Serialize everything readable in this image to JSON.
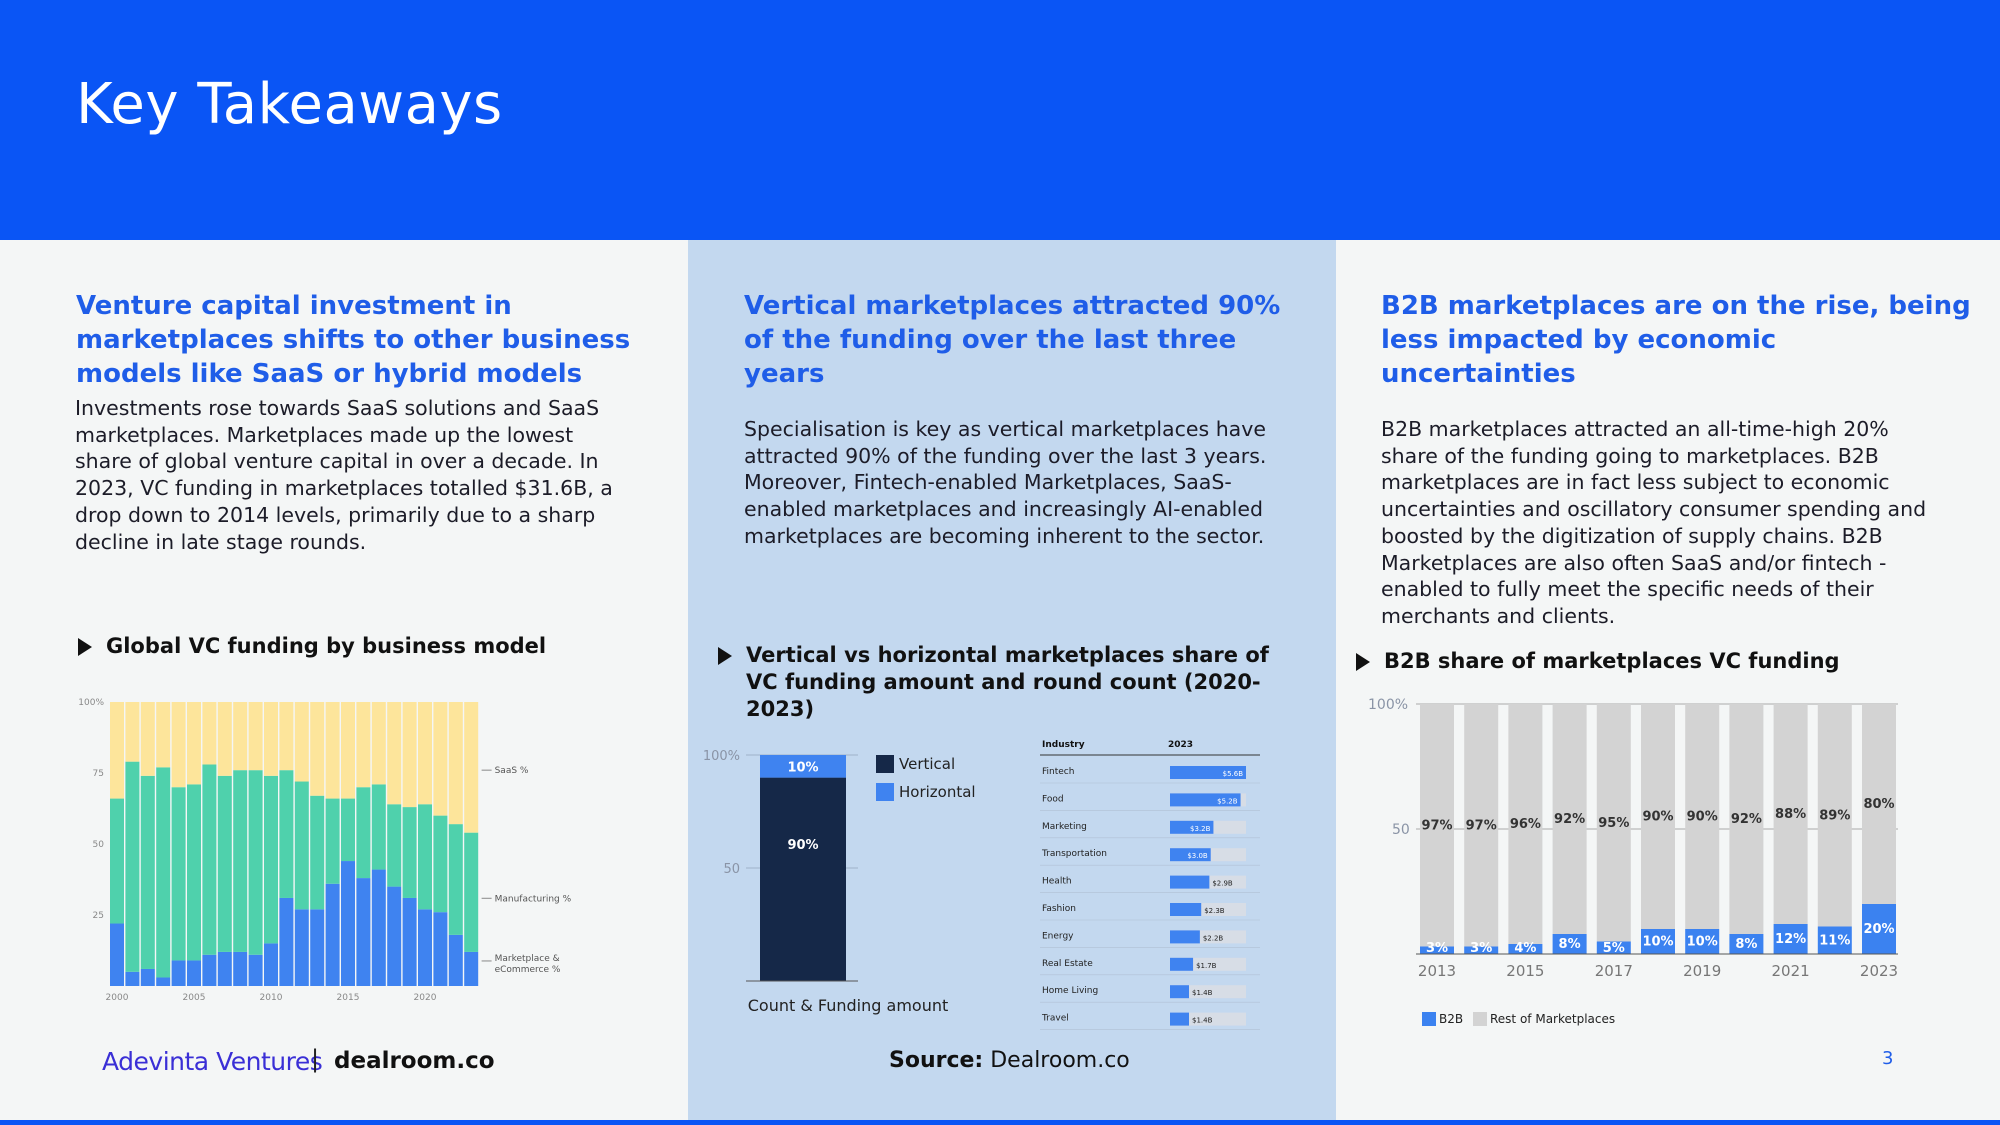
{
  "title": "Key Takeaways",
  "page_number": "3",
  "col1": {
    "heading": "Venture capital investment in marketplaces shifts to other business models like SaaS or hybrid models",
    "body": "Investments rose towards SaaS solutions and SaaS marketplaces. Marketplaces made up the lowest share of global venture capital in over a decade. In 2023, VC funding in marketplaces totalled $31.6B, a drop down to 2014 levels, primarily due to a sharp decline in late stage rounds.",
    "chart_title": "Global VC funding by business model"
  },
  "col2": {
    "heading": "Vertical marketplaces attracted 90% of the funding over the last three years",
    "body": "Specialisation is key as vertical marketplaces have attracted 90% of the funding over the last 3 years. Moreover, Fintech-enabled Marketplaces, SaaS-enabled marketplaces and increasingly AI-enabled marketplaces are becoming inherent to the sector.",
    "chart_title": "Vertical vs horizontal marketplaces share of VC funding amount and round count (2020-2023)",
    "source_label": "Source:",
    "source_value": "Dealroom.co"
  },
  "col3": {
    "heading": "B2B marketplaces are on the rise,  being less impacted by economic uncertainties",
    "body": "B2B marketplaces attracted an all-time-high 20% share of the funding going to marketplaces. B2B marketplaces are in fact less subject to economic uncertainties and oscillatory consumer spending and boosted by the digitization of supply chains. B2B Marketplaces are also often SaaS and/or fintech -enabled to fully meet the specific needs of their merchants and clients.",
    "chart_title": "B2B share of marketplaces VC funding"
  },
  "footer": {
    "brand1": "Adevinta Ventures",
    "separator": "|",
    "brand2": "dealroom.co"
  },
  "colors": {
    "brand_blue": "#0a55f5",
    "saas": "#fde59b",
    "manufacturing": "#4fd1ac",
    "marketplace": "#3f83f0",
    "vertical": "#152848",
    "b2b": "#3b82f0",
    "rest": "#d3d3d3"
  },
  "chart_data": [
    {
      "type": "bar",
      "stacked": true,
      "title": "Global VC funding by business model",
      "x": [
        2000,
        2001,
        2002,
        2003,
        2004,
        2005,
        2006,
        2007,
        2008,
        2009,
        2010,
        2011,
        2012,
        2013,
        2014,
        2015,
        2016,
        2017,
        2018,
        2019,
        2020,
        2021,
        2022,
        2023
      ],
      "x_ticks": [
        "2000",
        "2005",
        "2010",
        "2015",
        "2020"
      ],
      "y_ticks": [
        "100%",
        "75",
        "50",
        "25"
      ],
      "ylim": [
        0,
        100
      ],
      "series": [
        {
          "name": "Marketplace & eCommerce %",
          "values": [
            22,
            5,
            6,
            3,
            9,
            9,
            11,
            12,
            12,
            11,
            15,
            31,
            27,
            27,
            36,
            44,
            38,
            41,
            35,
            31,
            27,
            26,
            18,
            12
          ]
        },
        {
          "name": "Manufacturing %",
          "values": [
            44,
            74,
            68,
            74,
            61,
            62,
            67,
            62,
            64,
            65,
            59,
            45,
            45,
            40,
            30,
            22,
            32,
            30,
            29,
            32,
            37,
            34,
            39,
            42
          ]
        },
        {
          "name": "SaaS %",
          "values": [
            34,
            21,
            26,
            23,
            30,
            29,
            22,
            26,
            24,
            24,
            26,
            24,
            28,
            33,
            34,
            34,
            30,
            29,
            36,
            37,
            36,
            40,
            43,
            46
          ]
        }
      ]
    },
    {
      "type": "bar",
      "stacked": true,
      "title": "Vertical vs horizontal marketplaces share of VC funding amount and round count (2020-2023)",
      "categories": [
        "Count & Funding amount"
      ],
      "y_ticks": [
        "100%",
        "50"
      ],
      "ylim": [
        0,
        100
      ],
      "series": [
        {
          "name": "Vertical",
          "values": [
            90
          ],
          "label": "90%"
        },
        {
          "name": "Horizontal",
          "values": [
            10
          ],
          "label": "10%"
        }
      ]
    },
    {
      "type": "table",
      "columns": [
        "Industry",
        "2023"
      ],
      "rows": [
        {
          "industry": "Fintech",
          "label": "$5.6B",
          "value": 5.6
        },
        {
          "industry": "Food",
          "label": "$5.2B",
          "value": 5.2
        },
        {
          "industry": "Marketing",
          "label": "$3.2B",
          "value": 3.2
        },
        {
          "industry": "Transportation",
          "label": "$3.0B",
          "value": 3.0
        },
        {
          "industry": "Health",
          "label": "$2.9B",
          "value": 2.9
        },
        {
          "industry": "Fashion",
          "label": "$2.3B",
          "value": 2.3
        },
        {
          "industry": "Energy",
          "label": "$2.2B",
          "value": 2.2
        },
        {
          "industry": "Real Estate",
          "label": "$1.7B",
          "value": 1.7
        },
        {
          "industry": "Home Living",
          "label": "$1.4B",
          "value": 1.4
        },
        {
          "industry": "Travel",
          "label": "$1.4B",
          "value": 1.4
        }
      ]
    },
    {
      "type": "bar",
      "stacked": true,
      "title": "B2B share of marketplaces VC funding",
      "categories": [
        "2013",
        "2014",
        "2015",
        "2016",
        "2017",
        "2018",
        "2019",
        "2020",
        "2021",
        "2022",
        "2023"
      ],
      "x_ticks": [
        "2013",
        "2015",
        "2017",
        "2019",
        "2021",
        "2023"
      ],
      "y_ticks": [
        "100%",
        "50"
      ],
      "ylim": [
        0,
        100
      ],
      "series": [
        {
          "name": "B2B",
          "values": [
            3,
            3,
            4,
            8,
            5,
            10,
            10,
            8,
            12,
            11,
            20
          ],
          "labels": [
            "3%",
            "3%",
            "4%",
            "8%",
            "5%",
            "10%",
            "10%",
            "8%",
            "12%",
            "11%",
            "20%"
          ]
        },
        {
          "name": "Rest of Marketplaces",
          "values": [
            97,
            97,
            96,
            92,
            95,
            90,
            90,
            92,
            88,
            89,
            80
          ],
          "labels": [
            "97%",
            "97%",
            "96%",
            "92%",
            "95%",
            "90%",
            "90%",
            "92%",
            "88%",
            "89%",
            "80%"
          ]
        }
      ]
    }
  ]
}
